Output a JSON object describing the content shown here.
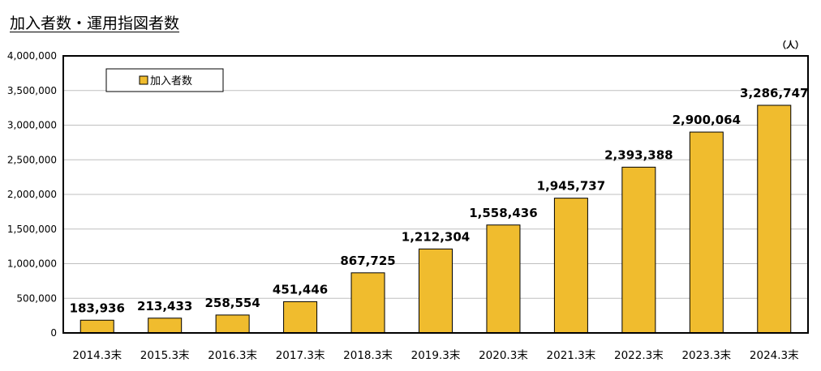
{
  "title": "加入者数・運用指図者数",
  "chart_data": {
    "type": "bar",
    "title": "加入者数・運用指図者数",
    "unit_label": "（人）",
    "categories": [
      "2014.3末",
      "2015.3末",
      "2016.3末",
      "2017.3末",
      "2018.3末",
      "2019.3末",
      "2020.3末",
      "2021.3末",
      "2022.3末",
      "2023.3末",
      "2024.3末"
    ],
    "series": [
      {
        "name": "加入者数",
        "values": [
          183936,
          213433,
          258554,
          451446,
          867725,
          1212304,
          1558436,
          1945737,
          2393388,
          2900064,
          3286747
        ],
        "labels": [
          "183,936",
          "213,433",
          "258,554",
          "451,446",
          "867,725",
          "1,212,304",
          "1,558,436",
          "1,945,737",
          "2,393,388",
          "2,900,064",
          "3,286,747"
        ]
      }
    ],
    "ylim": [
      0,
      4000000
    ],
    "yticks": [
      0,
      500000,
      1000000,
      1500000,
      2000000,
      2500000,
      3000000,
      3500000,
      4000000
    ],
    "ytick_labels": [
      "0",
      "500,000",
      "1,000,000",
      "1,500,000",
      "2,000,000",
      "2,500,000",
      "3,000,000",
      "3,500,000",
      "4,000,000"
    ],
    "grid": true,
    "legend_position": "top-left",
    "bar_color": "#F0BC2E"
  }
}
